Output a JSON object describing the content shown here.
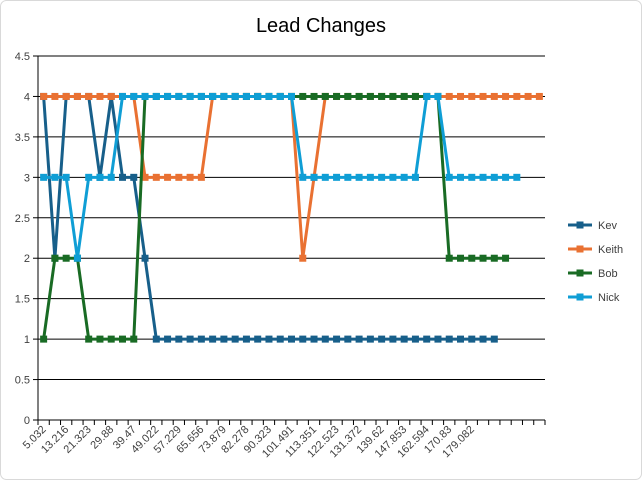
{
  "chart_data": {
    "type": "line",
    "title": "Lead Changes",
    "categories": [
      "5.032",
      null,
      "13.216",
      null,
      "21.323",
      null,
      "29.88",
      null,
      "39.47",
      null,
      "49.022",
      null,
      "57.229",
      null,
      "65.656",
      null,
      "73.879",
      null,
      "82.278",
      null,
      "90.323",
      null,
      "101.491",
      null,
      "113.351",
      null,
      "122.523",
      null,
      "131.372",
      null,
      "139.62",
      null,
      "147.853",
      null,
      "162.594",
      null,
      "170.83",
      null,
      "179.082",
      null,
      null,
      null,
      null,
      null,
      null
    ],
    "series": [
      {
        "name": "Kev",
        "color": "#175f8a",
        "values": [
          4,
          2,
          4,
          4,
          4,
          3,
          4,
          3,
          3,
          2,
          1,
          1,
          1,
          1,
          1,
          1,
          1,
          1,
          1,
          1,
          1,
          1,
          1,
          1,
          1,
          1,
          1,
          1,
          1,
          1,
          1,
          1,
          1,
          1,
          1,
          1,
          1,
          1,
          1,
          1,
          1,
          null,
          null,
          null,
          null
        ]
      },
      {
        "name": "Keith",
        "color": "#e97132",
        "values": [
          4,
          4,
          4,
          4,
          4,
          4,
          4,
          4,
          4,
          3,
          3,
          3,
          3,
          3,
          3,
          4,
          4,
          4,
          4,
          4,
          4,
          4,
          4,
          2,
          3,
          4,
          4,
          4,
          4,
          4,
          4,
          4,
          4,
          4,
          4,
          4,
          4,
          4,
          4,
          4,
          4,
          4,
          4,
          4,
          4
        ]
      },
      {
        "name": "Bob",
        "color": "#196b24",
        "values": [
          1,
          2,
          2,
          2,
          1,
          1,
          1,
          1,
          1,
          4,
          4,
          4,
          4,
          4,
          4,
          4,
          4,
          4,
          4,
          4,
          4,
          4,
          4,
          4,
          4,
          4,
          4,
          4,
          4,
          4,
          4,
          4,
          4,
          4,
          4,
          4,
          2,
          2,
          2,
          2,
          2,
          2,
          null,
          null,
          null
        ]
      },
      {
        "name": "Nick",
        "color": "#0f9ed5",
        "values": [
          3,
          3,
          3,
          2,
          3,
          3,
          3,
          4,
          4,
          4,
          4,
          4,
          4,
          4,
          4,
          4,
          4,
          4,
          4,
          4,
          4,
          4,
          4,
          3,
          3,
          3,
          3,
          3,
          3,
          3,
          3,
          3,
          3,
          3,
          4,
          4,
          3,
          3,
          3,
          3,
          3,
          3,
          3,
          null,
          null
        ]
      }
    ],
    "ylim": [
      0,
      4.5
    ],
    "yticks": [
      0,
      0.5,
      1,
      1.5,
      2,
      2.5,
      3,
      3.5,
      4,
      4.5
    ],
    "grid": true,
    "legend": "right"
  }
}
